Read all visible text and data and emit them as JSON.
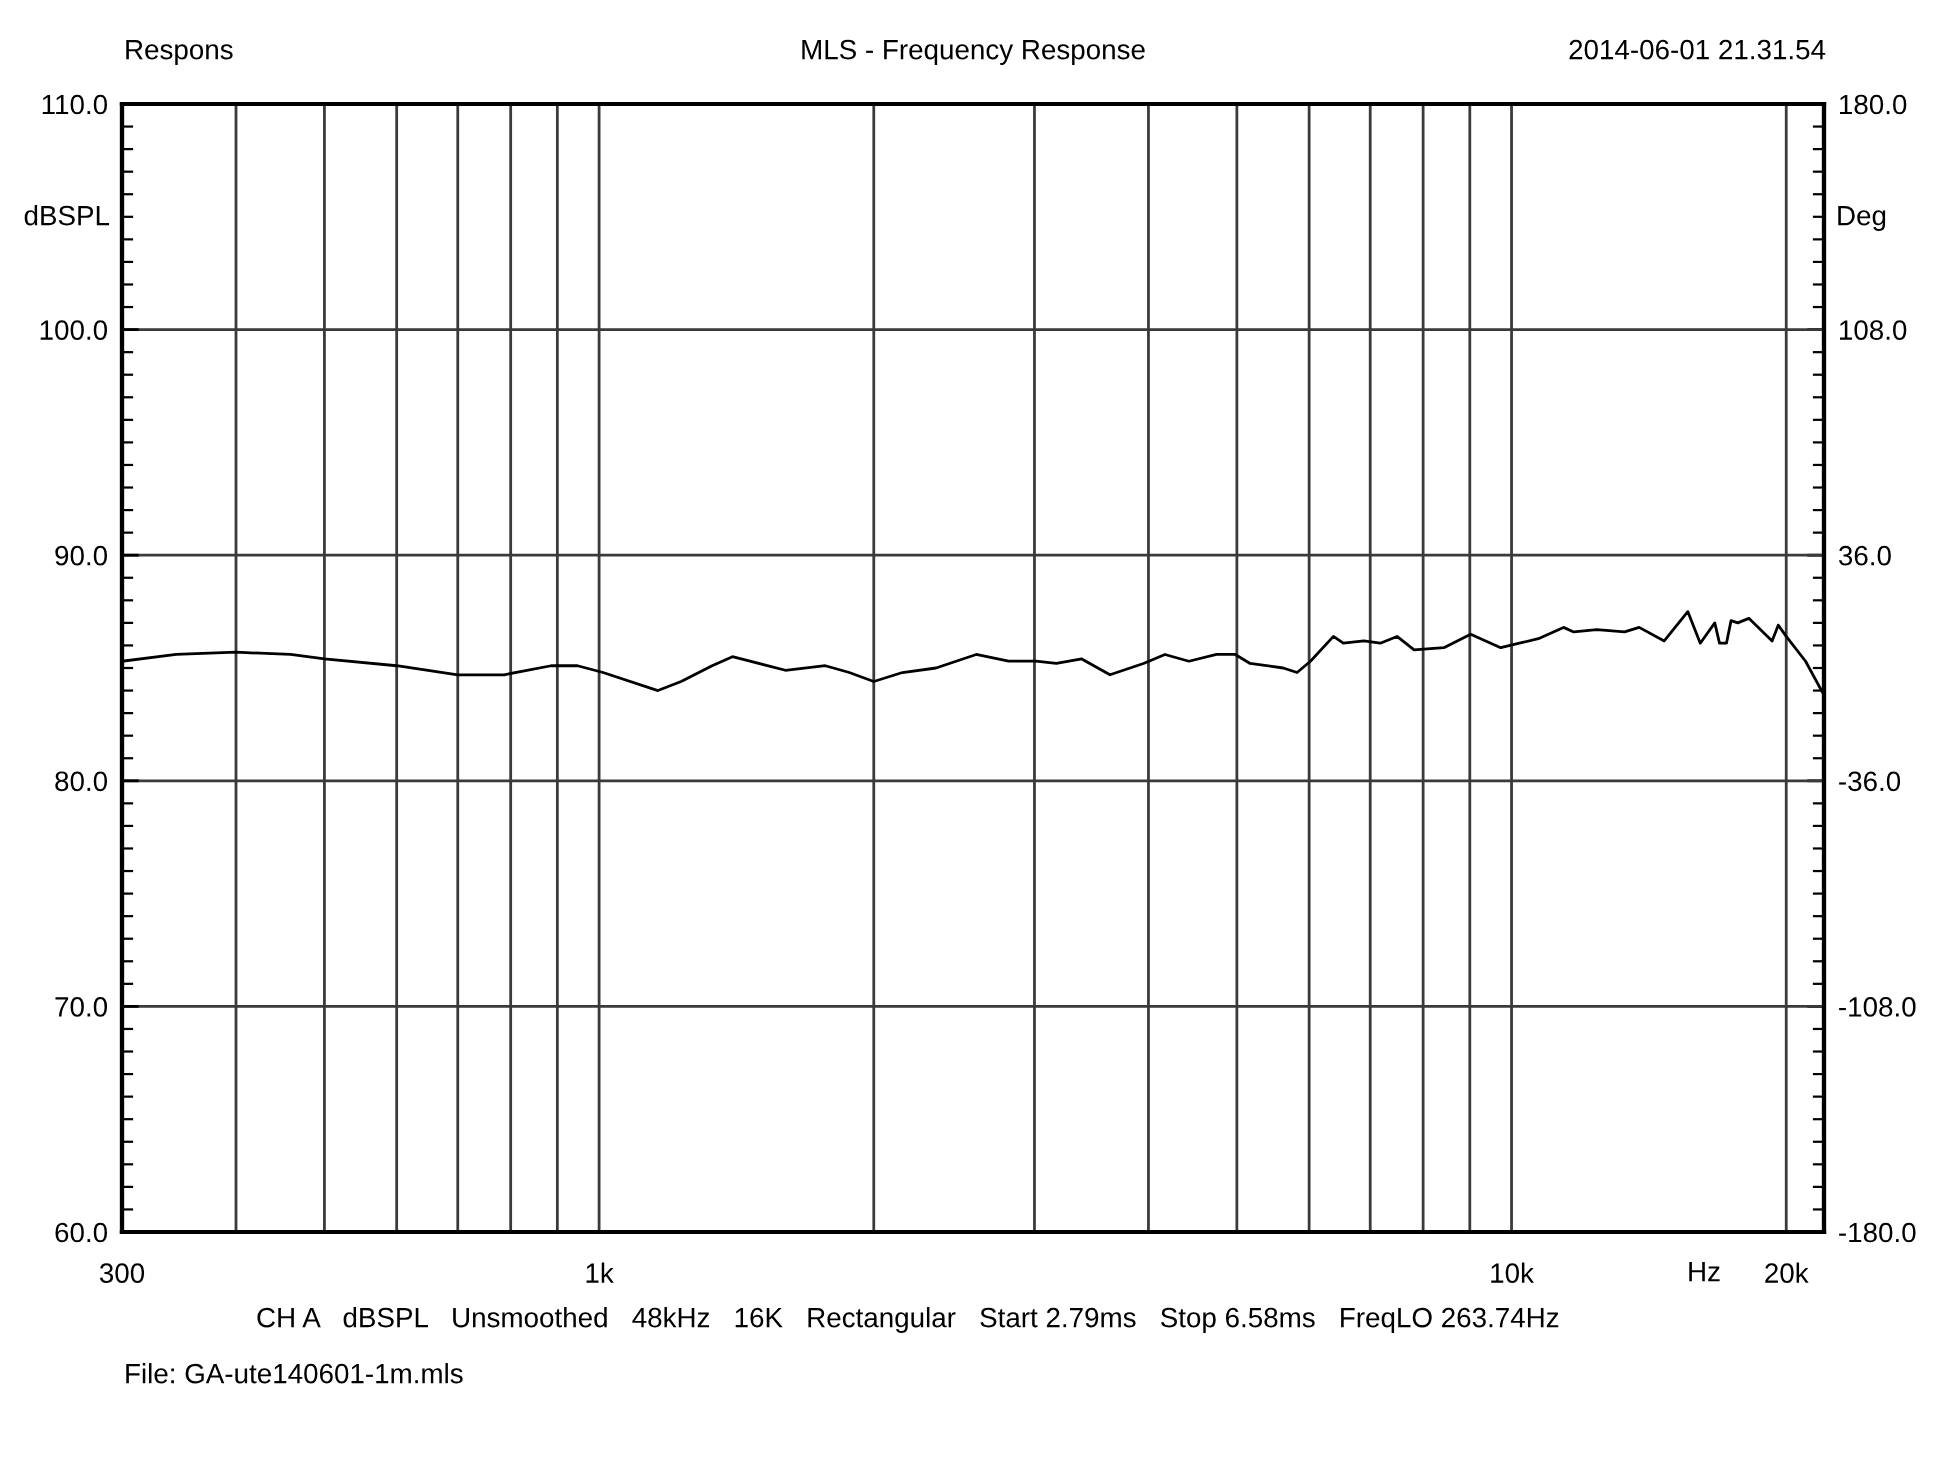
{
  "chart_data": {
    "type": "line",
    "title": "MLS - Frequency Response",
    "xlabel": "Hz",
    "ylabel": "dBSPL",
    "y2label": "Deg",
    "annotations": [
      "Respons",
      "2014-06-01 21.31.54",
      "CH A   dBSPL   Unsmoothed   48kHz   16K   Rectangular   Start 2.79ms   Stop 6.58ms   FreqLO 263.74Hz",
      "File: GA-ute140601-1m.mls"
    ],
    "x": [
      300,
      344,
      400,
      459,
      500,
      600,
      700,
      787,
      886,
      947,
      1010,
      1160,
      1230,
      1330,
      1400,
      1600,
      1770,
      1880,
      2000,
      2150,
      2340,
      2590,
      2810,
      3010,
      3170,
      3380,
      3630,
      3950,
      4170,
      4430,
      4750,
      4980,
      5170,
      5620,
      5820,
      6020,
      6380,
      6540,
      6890,
      7180,
      7490,
      7820,
      8430,
      9020,
      9730,
      10200,
      10700,
      11400,
      11700,
      12400,
      13300,
      13800,
      14700,
      15600,
      16100,
      16700,
      16900,
      17200,
      17400,
      17700,
      18200,
      19300,
      19600,
      20000,
      21000,
      22000
    ],
    "series": [
      {
        "color": "#000000",
        "values": [
          85.3,
          85.6,
          85.7,
          85.6,
          85.4,
          85.1,
          84.7,
          84.7,
          85.1,
          85.1,
          84.8,
          84.0,
          84.4,
          85.1,
          85.5,
          84.9,
          85.1,
          84.8,
          84.4,
          84.8,
          85.0,
          85.6,
          85.3,
          85.3,
          85.2,
          85.4,
          84.7,
          85.2,
          85.6,
          85.3,
          85.6,
          85.6,
          85.2,
          85.0,
          84.8,
          85.3,
          86.4,
          86.1,
          86.2,
          86.1,
          86.4,
          85.8,
          85.9,
          86.5,
          85.9,
          86.1,
          86.3,
          86.8,
          86.6,
          86.7,
          86.6,
          86.8,
          86.2,
          87.5,
          86.1,
          87.0,
          86.1,
          86.1,
          87.1,
          87.0,
          87.2,
          86.2,
          86.9,
          86.4,
          85.3,
          83.8
        ]
      }
    ],
    "xlim": [
      300,
      22000
    ],
    "xticks": [
      300,
      {
        "value": 400,
        "label": null
      },
      {
        "value": 500,
        "label": null
      },
      {
        "value": 600,
        "label": null
      },
      {
        "value": 700,
        "label": null
      },
      {
        "value": 800,
        "label": null
      },
      {
        "value": 900,
        "label": null
      },
      {
        "value": 1000,
        "label": "1k"
      },
      {
        "value": 2000,
        "label": null
      },
      {
        "value": 3000,
        "label": null
      },
      {
        "value": 4000,
        "label": null
      },
      {
        "value": 5000,
        "label": null
      },
      {
        "value": 6000,
        "label": null
      },
      {
        "value": 7000,
        "label": null
      },
      {
        "value": 8000,
        "label": null
      },
      {
        "value": 9000,
        "label": null
      },
      {
        "value": 10000,
        "label": "10k"
      },
      {
        "value": 20000,
        "label": "20k"
      }
    ],
    "ylim": [
      60,
      110
    ],
    "yticks": [
      {
        "value": 60,
        "label": "60.0"
      },
      {
        "value": 70,
        "label": "70.0"
      },
      {
        "value": 80,
        "label": "80.0"
      },
      {
        "value": 90,
        "label": "90.0"
      },
      {
        "value": 100,
        "label": "100.0"
      },
      {
        "value": 110,
        "label": "110.0"
      }
    ],
    "y2lim": [
      -180,
      180
    ],
    "y2ticks": [
      {
        "value": -180,
        "label": "-180.0"
      },
      {
        "value": -108,
        "label": "-108.0"
      },
      {
        "value": -36,
        "label": "-36.0"
      },
      {
        "value": 36,
        "label": "36.0"
      },
      {
        "value": 108,
        "label": "108.0"
      },
      {
        "value": 180,
        "label": "180.0"
      }
    ],
    "log": "x",
    "grid": true,
    "line_style": "solid"
  }
}
